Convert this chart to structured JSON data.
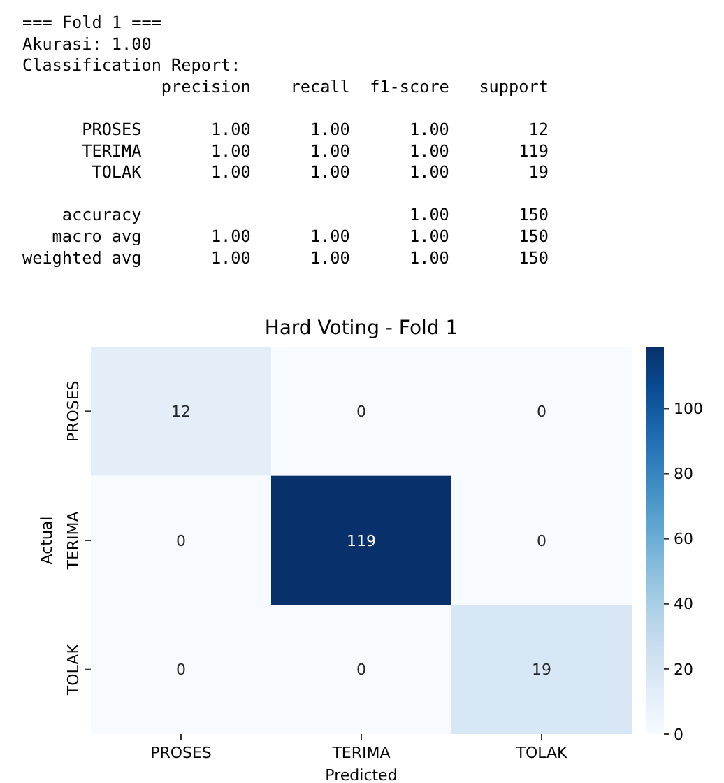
{
  "chart_data": {
    "type": "heatmap",
    "title": "Hard Voting - Fold 1",
    "xlabel": "Predicted",
    "ylabel": "Actual",
    "categories": [
      "PROSES",
      "TERIMA",
      "TOLAK"
    ],
    "y_categories": [
      "PROSES",
      "TERIMA",
      "TOLAK"
    ],
    "cells": [
      [
        12,
        0,
        0
      ],
      [
        0,
        119,
        0
      ],
      [
        0,
        0,
        19
      ]
    ],
    "data_labels": true,
    "clim": [
      0,
      119
    ],
    "cticks": [
      0,
      20,
      40,
      60,
      80,
      100
    ],
    "annotations": [
      "=== Fold 1 ===\nAkurasi: 1.00\nClassification Report:\n              precision    recall  f1-score   support\n\n      PROSES       1.00      1.00      1.00        12\n      TERIMA       1.00      1.00      1.00       119\n       TOLAK       1.00      1.00      1.00        19\n\n    accuracy                           1.00       150\n   macro avg       1.00      1.00      1.00       150\nweighted avg       1.00      1.00      1.00       150"
    ]
  }
}
